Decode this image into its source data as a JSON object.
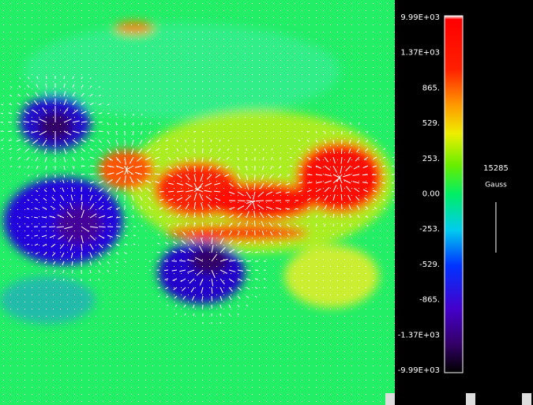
{
  "colorbar": {
    "labels": [
      "9.99E+03",
      "1.37E+03",
      "865.",
      "529.",
      "253.",
      "0.00",
      "-253.",
      "-529.",
      "-865.",
      "-1.37E+03",
      "-9.99E+03"
    ]
  },
  "scale": {
    "value": "15285",
    "unit": "Gauss"
  }
}
